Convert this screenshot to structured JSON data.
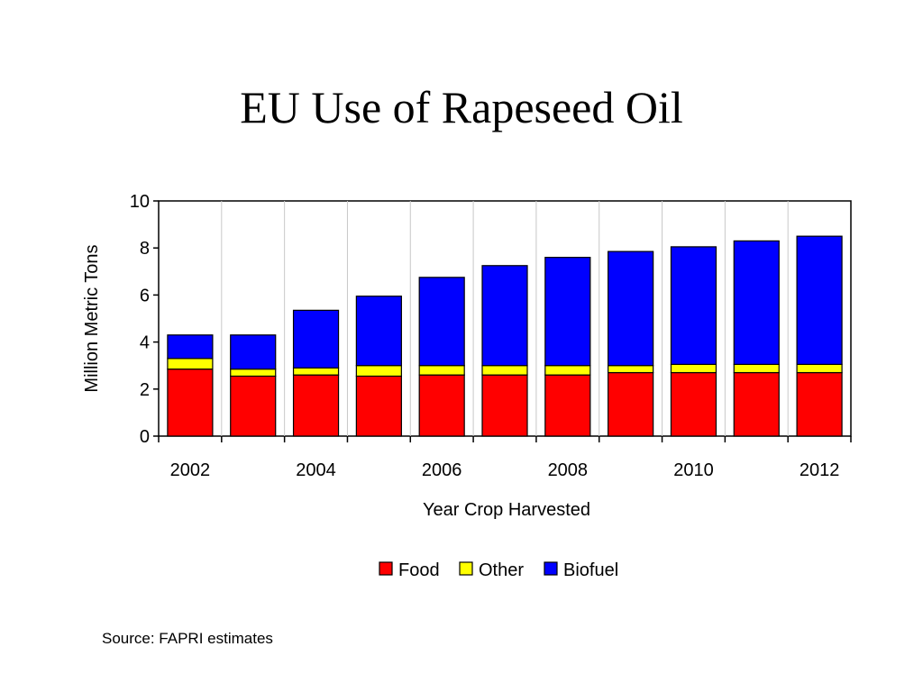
{
  "slide": {
    "title": "EU Use of Rapeseed Oil",
    "source": "Source: FAPRI estimates"
  },
  "chart_data": {
    "type": "bar",
    "stacked": true,
    "title": "",
    "xlabel": "Year Crop Harvested",
    "ylabel": "Million Metric Tons",
    "ylim": [
      0,
      10
    ],
    "yticks": [
      0,
      2,
      4,
      6,
      8,
      10
    ],
    "x_tick_labels": [
      "2002",
      "2004",
      "2006",
      "2008",
      "2010",
      "2012"
    ],
    "categories": [
      "2002",
      "2003",
      "2004",
      "2005",
      "2006",
      "2007",
      "2008",
      "2009",
      "2010",
      "2011",
      "2012"
    ],
    "series": [
      {
        "name": "Food",
        "color": "#ff0000",
        "values": [
          2.85,
          2.55,
          2.6,
          2.55,
          2.6,
          2.6,
          2.6,
          2.7,
          2.7,
          2.7,
          2.7
        ]
      },
      {
        "name": "Other",
        "color": "#ffff00",
        "values": [
          0.45,
          0.3,
          0.3,
          0.45,
          0.4,
          0.4,
          0.4,
          0.3,
          0.35,
          0.35,
          0.35
        ]
      },
      {
        "name": "Biofuel",
        "color": "#0000ff",
        "values": [
          1.0,
          1.45,
          2.45,
          2.95,
          3.75,
          4.25,
          4.6,
          4.85,
          5.0,
          5.25,
          5.45
        ]
      }
    ],
    "grid": {
      "vertical": true,
      "horizontal": false
    },
    "legend_position": "bottom"
  }
}
